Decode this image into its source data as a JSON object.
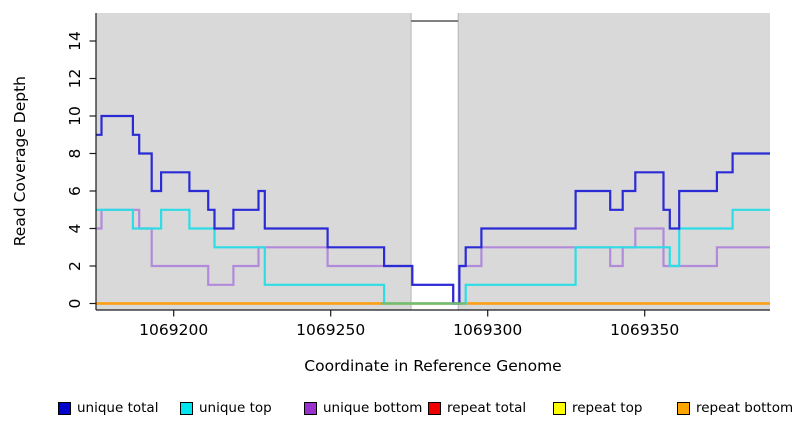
{
  "chart_data": {
    "type": "line",
    "subtype": "step-coverage",
    "title": "",
    "xlabel": "Coordinate in Reference Genome",
    "ylabel": "Read Coverage Depth",
    "xlim": [
      1069175,
      1069390
    ],
    "ylim": [
      0,
      15.2
    ],
    "x_ticks": [
      1069200,
      1069250,
      1069300,
      1069350
    ],
    "y_ticks": [
      0,
      2,
      4,
      6,
      8,
      10,
      12,
      14
    ],
    "grid": false,
    "legend_position": "bottom",
    "colors": {
      "plot_background": "#d9d9d9",
      "page_background": "#ffffff",
      "axis": "#1a1a1a",
      "gap_fill": "#ffffff",
      "gap_top_border": "#6e6e6e",
      "gap_edge": "#b5b5b5",
      "gap_zero_line": "#6fbf73"
    },
    "gap_region": {
      "x_start": 1069275.6,
      "x_end": 1069290.6
    },
    "series": [
      {
        "name": "repeat total",
        "color": "#de1010",
        "legend_color": "#ee0000",
        "x_end": 1069390,
        "steps": [
          [
            1069175,
            0
          ]
        ]
      },
      {
        "name": "repeat top",
        "color": "#ffff00",
        "legend_color": "#ffff00",
        "x_end": 1069390,
        "steps": [
          [
            1069175,
            0
          ]
        ]
      },
      {
        "name": "repeat bottom",
        "color": "#ff9e12",
        "legend_color": "#ffa500",
        "x_end": 1069390,
        "steps": [
          [
            1069175,
            0
          ]
        ]
      },
      {
        "name": "unique bottom",
        "color": "#b18bda",
        "legend_color": "#9932cc",
        "x_end": 1069390,
        "steps": [
          [
            1069175,
            4
          ],
          [
            1069177,
            5
          ],
          [
            1069189,
            4
          ],
          [
            1069193,
            2
          ],
          [
            1069211,
            1
          ],
          [
            1069219,
            2
          ],
          [
            1069227,
            3
          ],
          [
            1069249,
            2
          ],
          [
            1069276,
            1
          ],
          [
            1069289,
            0
          ],
          [
            1069291,
            2
          ],
          [
            1069298,
            3
          ],
          [
            1069339,
            2
          ],
          [
            1069343,
            3
          ],
          [
            1069347,
            4
          ],
          [
            1069356,
            2
          ],
          [
            1069373,
            3
          ]
        ]
      },
      {
        "name": "unique top",
        "color": "#2edce6",
        "legend_color": "#00e5ee",
        "x_end": 1069390,
        "steps": [
          [
            1069175,
            5
          ],
          [
            1069187,
            4
          ],
          [
            1069196,
            5
          ],
          [
            1069205,
            4
          ],
          [
            1069213,
            3
          ],
          [
            1069229,
            1
          ],
          [
            1069267,
            0
          ],
          [
            1069293,
            1
          ],
          [
            1069328,
            3
          ],
          [
            1069358,
            2
          ],
          [
            1069361,
            4
          ],
          [
            1069378,
            5
          ]
        ]
      },
      {
        "name": "unique total",
        "color": "#2b2bd5",
        "legend_color": "#0000cd",
        "x_end": 1069390,
        "steps": [
          [
            1069175,
            9
          ],
          [
            1069177,
            10
          ],
          [
            1069187,
            9
          ],
          [
            1069189,
            8
          ],
          [
            1069193,
            6
          ],
          [
            1069196,
            7
          ],
          [
            1069205,
            6
          ],
          [
            1069211,
            5
          ],
          [
            1069213,
            4
          ],
          [
            1069219,
            5
          ],
          [
            1069227,
            6
          ],
          [
            1069229,
            4
          ],
          [
            1069249,
            3
          ],
          [
            1069267,
            2
          ],
          [
            1069276,
            1
          ],
          [
            1069289,
            0
          ],
          [
            1069291,
            2
          ],
          [
            1069293,
            3
          ],
          [
            1069298,
            4
          ],
          [
            1069328,
            6
          ],
          [
            1069339,
            5
          ],
          [
            1069343,
            6
          ],
          [
            1069347,
            7
          ],
          [
            1069356,
            5
          ],
          [
            1069358,
            4
          ],
          [
            1069361,
            6
          ],
          [
            1069373,
            7
          ],
          [
            1069378,
            8
          ]
        ]
      },
      {
        "name": "gap zero segment",
        "color": "#6fbf73",
        "legend_color": null,
        "x_end": 1069293,
        "steps": [
          [
            1069266,
            0
          ]
        ]
      }
    ],
    "legend": [
      {
        "label": "unique total",
        "color": "#0000cd"
      },
      {
        "label": "unique top",
        "color": "#00e5ee"
      },
      {
        "label": "unique bottom",
        "color": "#9932cc"
      },
      {
        "label": "repeat total",
        "color": "#ee0000"
      },
      {
        "label": "repeat top",
        "color": "#ffff00"
      },
      {
        "label": "repeat bottom",
        "color": "#ffa500"
      }
    ]
  }
}
